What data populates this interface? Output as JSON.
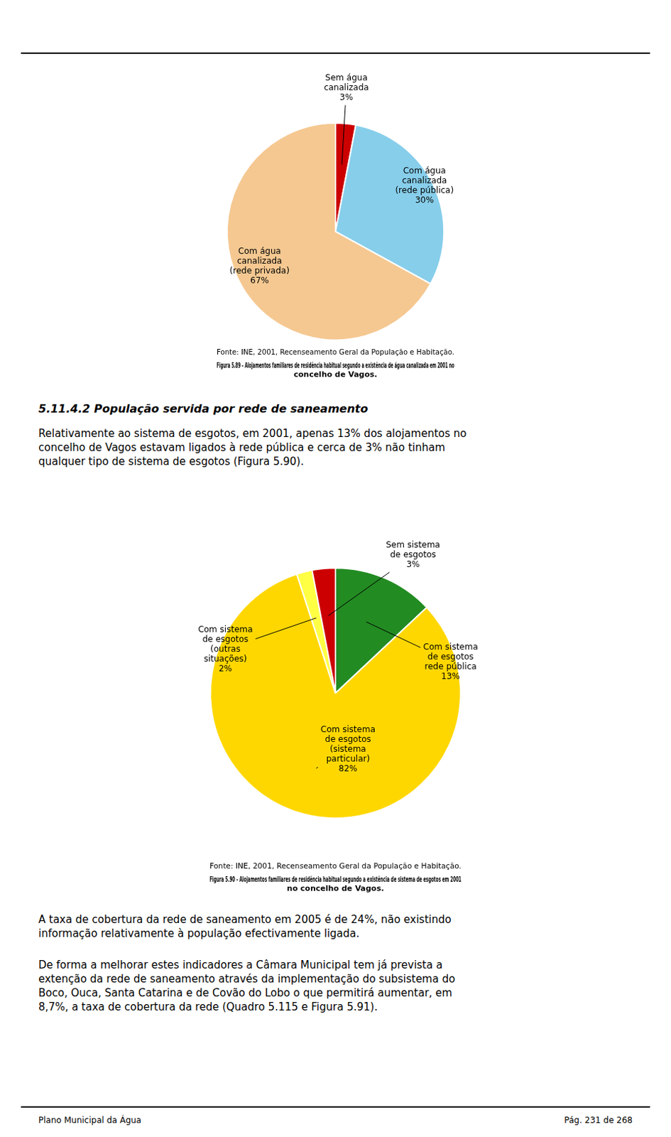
{
  "chart_data": [
    {
      "type": "pie",
      "title": [
        "Figura 5.89 - Alojamentos familiares de residência habitual segundo a existência de água canalizada em 2001 no",
        "concelho de Vagos."
      ],
      "subtitle": "Fonte: INE, 2001, Recenseamento Geral da População e Habitação.",
      "categories": [
        "Sem água canalizada",
        "Com água canalizada (rede pública)",
        "Com água canalizada (rede privada)"
      ],
      "values": [
        3,
        30,
        67
      ],
      "value_labels": [
        "3%",
        "30%",
        "67%"
      ],
      "colors": [
        "#cc0000",
        "#87CEEB",
        "#F5C891"
      ],
      "data_labels": true,
      "annotations": [
        [
          "5.11.4.2  População servida por rede de saneamento"
        ],
        [
          "Relativamente ao sistema de esgotos, em 2001, apenas 13% dos alojamentos no",
          "concelho de Vagos estavam ligados à rede pública e cerca de 3% não tinham",
          "qualquer tipo de sistema de esgotos (Figura 5.90)."
        ]
      ]
    },
    {
      "type": "pie",
      "title": [
        "Figura 5.90 - Alojamentos familiares de residência habitual segundo a existência de sistema de esgotos em 2001",
        "no concelho de Vagos."
      ],
      "subtitle": "Fonte: INE, 2001, Recenseamento Geral da População e Habitação.",
      "categories": [
        "Com sistema de esgotos rede pública",
        "Com sistema de esgotos (sistema particular)",
        "Com sistema de esgotos (outras situações)",
        "Sem sistema de esgotos"
      ],
      "values": [
        13,
        82,
        2,
        3
      ],
      "value_labels": [
        "13%",
        "82%",
        "2%",
        "3%"
      ],
      "colors": [
        "#228B22",
        "#FFD700",
        "#FFFF44",
        "#cc0000"
      ],
      "data_labels": true,
      "annotations": [
        [
          "A taxa de cobertura da rede de saneamento em 2005 é de 24%, não existindo",
          "informação relativamente à população efectivamente ligada."
        ],
        [
          "De forma a melhorar estes indicadores a Câmara Municipal tem já prevista a",
          "extenção da rede de saneamento através da implementação do subsistema do",
          "Boco, Ouca, Santa Catarina e de Covão do Lobo o que permitirá aumentar, em",
          "8,7%, a taxa de cobertura da rede (Quadro 5.115 e Figura 5.91)."
        ],
        [
          "Plano Municipal da Água",
          "Pág. 231 de 268"
        ]
      ]
    }
  ]
}
